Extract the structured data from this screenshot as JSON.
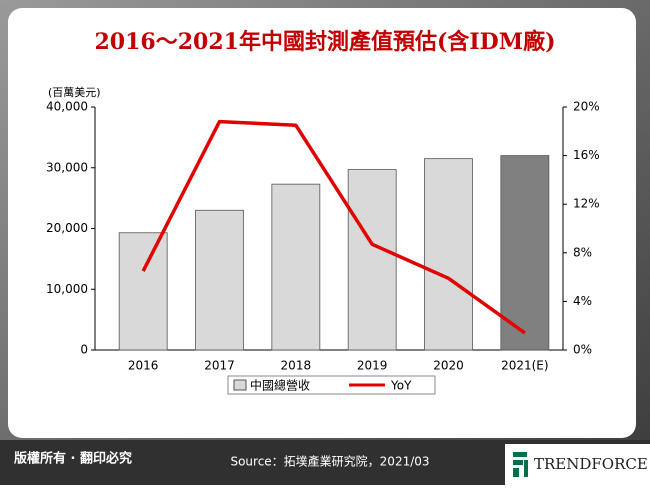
{
  "chart_data": {
    "type": "bar-line",
    "title": "2016～2021年中國封測產值預估(含IDM廠)",
    "y_label": "(百萬美元)",
    "categories": [
      "2016",
      "2017",
      "2018",
      "2019",
      "2020",
      "2021(E)"
    ],
    "series": [
      {
        "name": "中國總營收",
        "type": "bar",
        "color": "#d9d9d9",
        "colors": [
          "#d9d9d9",
          "#d9d9d9",
          "#d9d9d9",
          "#d9d9d9",
          "#d9d9d9",
          "#808080"
        ],
        "values": [
          19300,
          23000,
          27300,
          29700,
          31500,
          32000
        ]
      },
      {
        "name": "YoY",
        "type": "line",
        "axis": "y2",
        "color": "#e00000",
        "values": [
          6.5,
          18.8,
          18.5,
          8.7,
          5.9,
          1.4
        ]
      }
    ],
    "ylim": [
      0,
      40000
    ],
    "yticks": [
      0,
      {
        "value": 10000,
        "label": "10,000"
      },
      {
        "value": 20000,
        "label": "20,000"
      },
      {
        "value": 30000,
        "label": "30,000"
      },
      {
        "value": 40000,
        "label": "40,000"
      }
    ],
    "y2lim": [
      0,
      20
    ],
    "y2ticks": [
      {
        "value": 0,
        "label": "0%"
      },
      {
        "value": 4,
        "label": "4%"
      },
      {
        "value": 8,
        "label": "8%"
      },
      {
        "value": 12,
        "label": "12%"
      },
      {
        "value": 16,
        "label": "16%"
      },
      {
        "value": 20,
        "label": "20%"
      }
    ]
  },
  "footer": {
    "copyright": "版權所有 · 翻印必究",
    "source": "Source：拓墣產業研究院，2021/03",
    "logo": "TRENDFORCE"
  }
}
